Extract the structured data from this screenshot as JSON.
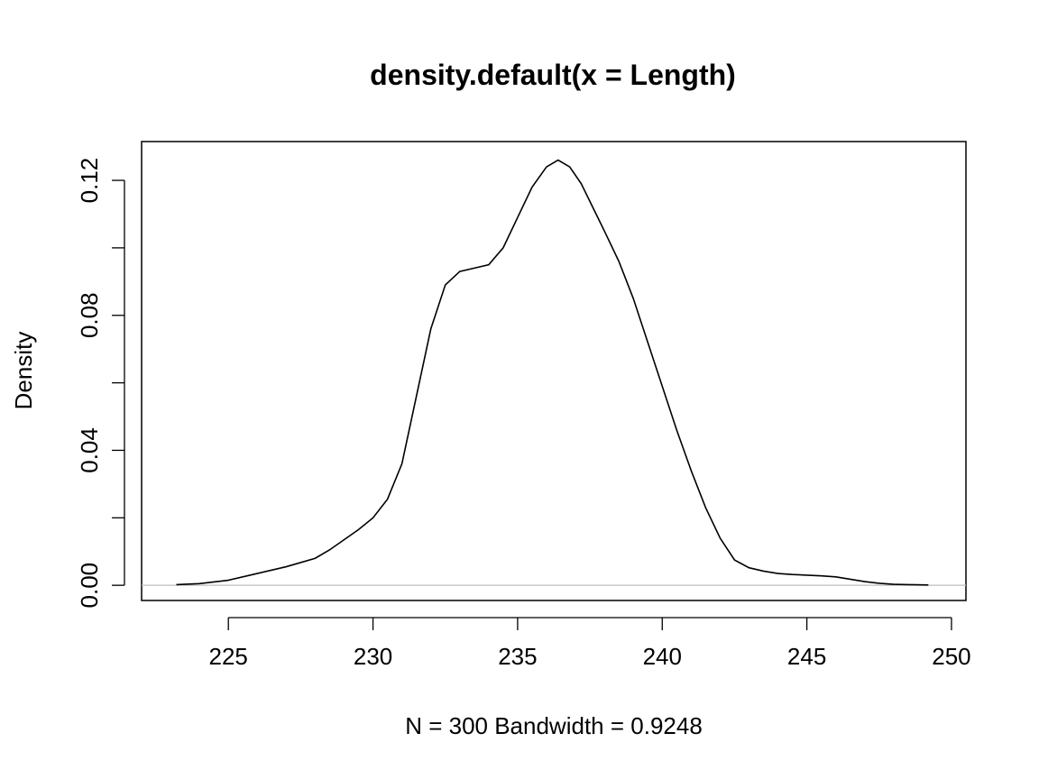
{
  "chart_data": {
    "type": "line",
    "title": "density.default(x = Length)",
    "xlabel": "N = 300   Bandwidth = 0.9248",
    "ylabel": "Density",
    "xlim": [
      222,
      250.5
    ],
    "ylim": [
      -0.0045,
      0.1315
    ],
    "x_ticks": [
      225,
      230,
      235,
      240,
      245,
      250
    ],
    "x_tick_labels": [
      "225",
      "230",
      "235",
      "240",
      "245",
      "250"
    ],
    "y_ticks": [
      0.0,
      0.02,
      0.04,
      0.06,
      0.08,
      0.1,
      0.12
    ],
    "y_tick_labels": [
      "0.00",
      "",
      "0.04",
      "",
      "0.08",
      "",
      "0.12"
    ],
    "zero_line": true,
    "grid": false,
    "legend": "none",
    "series": [
      {
        "x": [
          223.2,
          224.0,
          225.0,
          226.0,
          227.0,
          228.0,
          228.5,
          229.0,
          229.5,
          230.0,
          230.5,
          231.0,
          231.5,
          232.0,
          232.5,
          233.0,
          233.5,
          234.0,
          234.5,
          235.0,
          235.5,
          236.0,
          236.4,
          236.8,
          237.2,
          237.6,
          238.0,
          238.5,
          239.0,
          239.5,
          240.0,
          240.5,
          241.0,
          241.5,
          242.0,
          242.5,
          243.0,
          243.5,
          244.0,
          244.5,
          245.0,
          245.5,
          246.0,
          246.5,
          247.0,
          247.5,
          248.0,
          248.5,
          249.2
        ],
        "y": [
          0.0002,
          0.0005,
          0.0015,
          0.0035,
          0.0055,
          0.008,
          0.0105,
          0.0135,
          0.0165,
          0.02,
          0.0255,
          0.036,
          0.056,
          0.076,
          0.089,
          0.093,
          0.094,
          0.095,
          0.1,
          0.109,
          0.118,
          0.124,
          0.126,
          0.124,
          0.119,
          0.112,
          0.105,
          0.096,
          0.085,
          0.072,
          0.059,
          0.046,
          0.034,
          0.023,
          0.014,
          0.0075,
          0.0052,
          0.0042,
          0.0035,
          0.0032,
          0.003,
          0.0028,
          0.0025,
          0.0018,
          0.0011,
          0.0006,
          0.0003,
          0.0002,
          0.0001
        ]
      }
    ]
  }
}
